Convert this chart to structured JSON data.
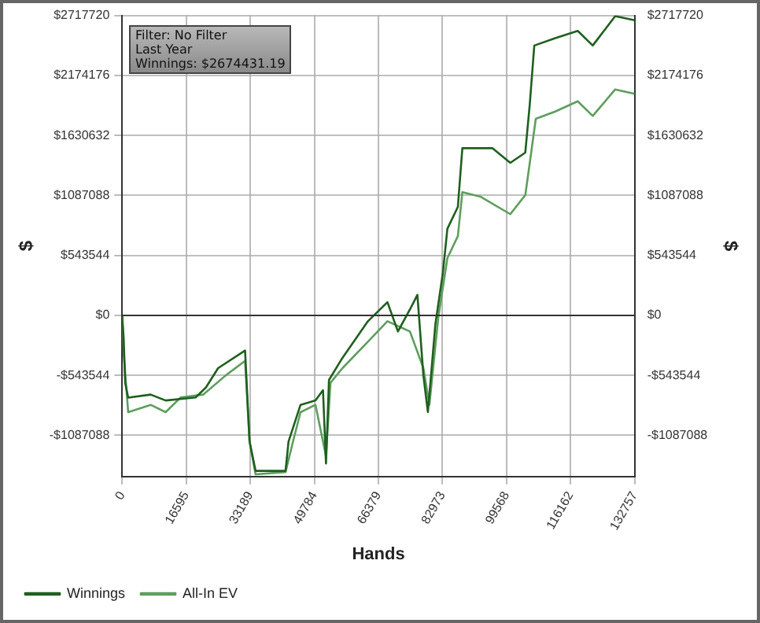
{
  "chart_data": {
    "type": "line",
    "xlabel": "Hands",
    "ylabel": "$",
    "y2label": "$",
    "annotations": [
      "Filter: No Filter",
      "Last Year",
      "Winnings: $2674431.19"
    ],
    "x": [
      0,
      388,
      776,
      1553,
      7376,
      11258,
      19022,
      21739,
      24845,
      31832,
      32997,
      34550,
      42314,
      43090,
      46196,
      50078,
      52019,
      52795,
      53572,
      57065,
      63665,
      68711,
      71429,
      74534,
      76475,
      78028,
      79193,
      81134,
      83075,
      84239,
      86957,
      88121,
      95885,
      100544,
      104426,
      105590,
      106755,
      112190,
      118013,
      121895,
      127718,
      132757
    ],
    "series": [
      {
        "name": "Winnings",
        "color": "#1f5f1f",
        "values": [
          0,
          -213000,
          -611000,
          -745000,
          -718000,
          -771000,
          -744000,
          -651000,
          -478000,
          -319000,
          -1143000,
          -1409000,
          -1409000,
          -1143000,
          -811000,
          -771000,
          -678000,
          -1342000,
          -585000,
          -385000,
          -53000,
          120000,
          -146000,
          53000,
          186000,
          -545000,
          -877000,
          -80000,
          385000,
          784000,
          983000,
          1515000,
          1515000,
          1382000,
          1475000,
          1914000,
          2445000,
          2512000,
          2578000,
          2445000,
          2711000,
          2674000
        ]
      },
      {
        "name": "All-In EV",
        "color": "#5e9e5e",
        "x": [
          0,
          388,
          1553,
          7376,
          11258,
          15140,
          20963,
          26786,
          31832,
          32997,
          34550,
          42314,
          44255,
          46196,
          50078,
          52795,
          53960,
          57065,
          63665,
          68711,
          74534,
          78028,
          79581,
          81910,
          84239,
          86957,
          88121,
          92780,
          100544,
          104426,
          105590,
          107143,
          112190,
          118013,
          121895,
          127718,
          132757
        ],
        "values": [
          0,
          -346000,
          -877000,
          -811000,
          -877000,
          -744000,
          -718000,
          -545000,
          -412000,
          -1143000,
          -1440000,
          -1420000,
          -1143000,
          -877000,
          -811000,
          -1276000,
          -611000,
          -478000,
          -239000,
          -53000,
          -146000,
          -478000,
          -811000,
          -13000,
          518000,
          718000,
          1116000,
          1076000,
          917000,
          1090000,
          1382000,
          1781000,
          1847000,
          1940000,
          1807000,
          2047000,
          2007000
        ]
      }
    ],
    "xlim": [
      0,
      132757
    ],
    "xticks": [
      0,
      16595,
      33189,
      49784,
      66379,
      82973,
      99568,
      116162,
      132757
    ],
    "ylim": [
      -1460000,
      2717720
    ],
    "yticks": [
      {
        "value": -1087088,
        "label": "-$1087088"
      },
      {
        "value": -543544,
        "label": "-$543544"
      },
      {
        "value": 0,
        "label": "$0"
      },
      {
        "value": 543544,
        "label": "$543544"
      },
      {
        "value": 1087088,
        "label": "$1087088"
      },
      {
        "value": 1630632,
        "label": "$1630632"
      },
      {
        "value": 2174176,
        "label": "$2174176"
      },
      {
        "value": 2717720,
        "label": "$2717720"
      }
    ],
    "y2lim": [
      -1460000,
      2717720
    ],
    "y2ticks": [
      {
        "value": -1087088,
        "label": "-$1087088"
      },
      {
        "value": -543544,
        "label": "-$543544"
      },
      {
        "value": 0,
        "label": "$0"
      },
      {
        "value": 543544,
        "label": "$543544"
      },
      {
        "value": 1087088,
        "label": "$1087088"
      },
      {
        "value": 1630632,
        "label": "$1630632"
      },
      {
        "value": 2174176,
        "label": "$2174176"
      },
      {
        "value": 2717720,
        "label": "$2717720"
      }
    ],
    "ref_lines": [
      {
        "axis": "y",
        "value": 0,
        "color": "#333333"
      }
    ],
    "grid": true,
    "legend": "bottom left",
    "line_style": "solid",
    "marker": "none"
  }
}
